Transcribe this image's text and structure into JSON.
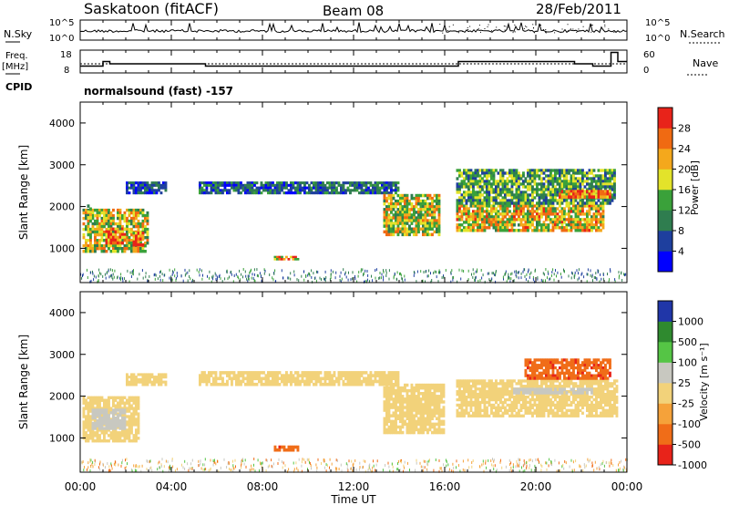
{
  "header": {
    "station": "Saskatoon (fitACF)",
    "beam": "Beam 08",
    "date": "28/Feb/2011"
  },
  "noise_panel": {
    "left_label": "N.Sky",
    "right_label": "N.Search",
    "left_ticks": [
      "10^5",
      "10^0"
    ],
    "right_ticks": [
      "10^5",
      "10^0"
    ]
  },
  "freq_panel": {
    "left_label_1": "Freq.",
    "left_label_2": "[MHz]",
    "right_label": "Nave",
    "left_ticks": [
      "18",
      "8"
    ],
    "right_ticks": [
      "60",
      "0"
    ]
  },
  "cpid_panel": {
    "label": "CPID",
    "text": "normalsound (fast) -157"
  },
  "power_panel": {
    "ylabel": "Slant Range [km]",
    "yticks": [
      "4000",
      "3000",
      "2000",
      "1000"
    ],
    "colorbar_label": "Power [dB]",
    "colorbar_ticks": [
      "28",
      "24",
      "20",
      "16",
      "12",
      "8",
      "4"
    ],
    "colors": [
      "#0000ff",
      "#1e3f9e",
      "#2f7d4f",
      "#3aa13a",
      "#e3e32a",
      "#f4a81c",
      "#f06a12",
      "#e8231a"
    ]
  },
  "velocity_panel": {
    "ylabel": "Slant Range [km]",
    "yticks": [
      "4000",
      "3000",
      "2000",
      "1000"
    ],
    "colorbar_label": "Velocity [m s⁻¹]",
    "colorbar_ticks": [
      "1000",
      "500",
      "100",
      "25",
      "-25",
      "-100",
      "-500",
      "-1000"
    ],
    "colors": [
      "#2036a8",
      "#2f8a2f",
      "#55c545",
      "#c8c8c0",
      "#f2d27a",
      "#f5a23a",
      "#f06d18",
      "#e8231a"
    ]
  },
  "xaxis": {
    "label": "Time UT",
    "ticks": [
      "00:00",
      "04:00",
      "08:00",
      "12:00",
      "16:00",
      "20:00",
      "00:00"
    ]
  },
  "chart_data": [
    {
      "type": "heatmap",
      "title": "Power",
      "x_range_hours": [
        0,
        24
      ],
      "ylim_km": [
        180,
        4500
      ],
      "zlim_db": [
        0,
        32
      ],
      "regions": [
        {
          "t0": 0.1,
          "t1": 3.0,
          "r0": 900,
          "r1": 1950,
          "z": 18
        },
        {
          "t0": 1.1,
          "t1": 2.0,
          "r0": 1100,
          "r1": 1500,
          "z": 28
        },
        {
          "t0": 2.3,
          "t1": 2.8,
          "r0": 1050,
          "r1": 1400,
          "z": 26
        },
        {
          "t0": 0.3,
          "t1": 0.5,
          "r0": 1700,
          "r1": 2050,
          "z": 14
        },
        {
          "t0": 2.0,
          "t1": 3.8,
          "r0": 2300,
          "r1": 2600,
          "z": 6
        },
        {
          "t0": 5.2,
          "t1": 14.0,
          "r0": 2300,
          "r1": 2600,
          "z": 8
        },
        {
          "t0": 13.3,
          "t1": 15.8,
          "r0": 1300,
          "r1": 2300,
          "z": 18
        },
        {
          "t0": 8.5,
          "t1": 9.6,
          "r0": 720,
          "r1": 820,
          "z": 22
        },
        {
          "t0": 16.5,
          "t1": 23.0,
          "r0": 1400,
          "r1": 2050,
          "z": 20
        },
        {
          "t0": 16.5,
          "t1": 23.5,
          "r0": 2050,
          "r1": 2900,
          "z": 13
        },
        {
          "t0": 21.0,
          "t1": 23.3,
          "r0": 2200,
          "r1": 2400,
          "z": 26
        }
      ]
    },
    {
      "type": "heatmap",
      "title": "Velocity",
      "x_range_hours": [
        0,
        24
      ],
      "ylim_km": [
        180,
        4500
      ],
      "zlim_ms": [
        -1000,
        1000
      ],
      "regions": [
        {
          "t0": 0.1,
          "t1": 2.6,
          "r0": 900,
          "r1": 2000,
          "z": 0
        },
        {
          "t0": 0.5,
          "t1": 2.0,
          "r0": 1200,
          "r1": 1700,
          "z": 60
        },
        {
          "t0": 2.0,
          "t1": 3.8,
          "r0": 2250,
          "r1": 2550,
          "z": 0
        },
        {
          "t0": 5.2,
          "t1": 14.0,
          "r0": 2250,
          "r1": 2600,
          "z": 0
        },
        {
          "t0": 13.3,
          "t1": 16.0,
          "r0": 1100,
          "r1": 2300,
          "z": 0
        },
        {
          "t0": 8.5,
          "t1": 9.6,
          "r0": 680,
          "r1": 820,
          "z": -400
        },
        {
          "t0": 16.5,
          "t1": 23.6,
          "r0": 1500,
          "r1": 2400,
          "z": 0
        },
        {
          "t0": 19.5,
          "t1": 23.3,
          "r0": 2400,
          "r1": 2900,
          "z": -400
        },
        {
          "t0": 19.0,
          "t1": 22.5,
          "r0": 2050,
          "r1": 2200,
          "z": 60
        }
      ]
    }
  ]
}
